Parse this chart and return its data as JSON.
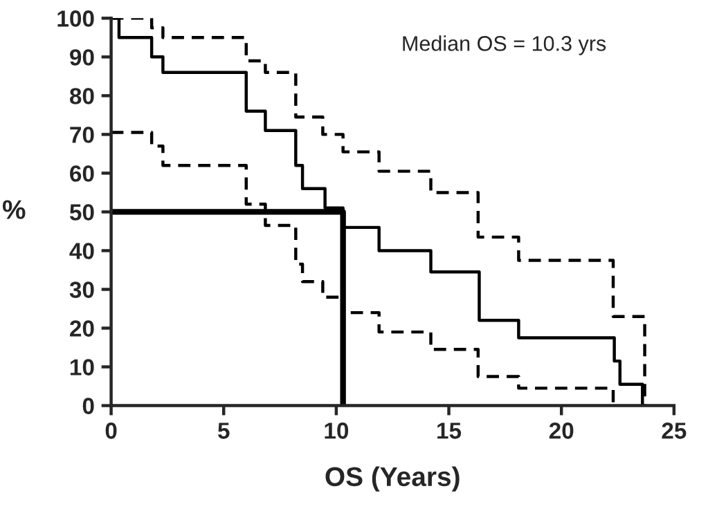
{
  "chart_data": {
    "type": "step",
    "xlabel": "OS (Years)",
    "ylabel": "%",
    "annotations": [
      "Median OS = 10.3 yrs"
    ],
    "xlim": [
      0,
      25
    ],
    "xticks": [
      0,
      5,
      10,
      15,
      20,
      25
    ],
    "ylim": [
      0,
      100
    ],
    "yticks": [
      0,
      10,
      20,
      30,
      40,
      50,
      60,
      70,
      80,
      90,
      100
    ],
    "grid": false,
    "legend": false,
    "series": [
      {
        "color": "#000000",
        "line_style": "solid",
        "x": [
          0,
          0.35,
          1.8,
          2.3,
          6.0,
          6.85,
          8.2,
          8.5,
          9.5,
          10.3,
          11.9,
          14.2,
          16.35,
          18.1,
          22.35,
          22.6,
          23.6
        ],
        "values": [
          100,
          95,
          90,
          86,
          76,
          71,
          62,
          56,
          51,
          46,
          40,
          34.5,
          22,
          17.5,
          11.5,
          5.5,
          0
        ]
      },
      {
        "color": "#000000",
        "line_style": "dashed",
        "x": [
          0,
          1.8,
          2.3,
          6.0,
          6.85,
          8.2,
          9.4,
          10.3,
          11.9,
          14.2,
          16.3,
          18.1,
          22.3,
          23.7
        ],
        "values": [
          100,
          97.5,
          95,
          89,
          86,
          74.5,
          70,
          65.5,
          60.5,
          55,
          43.5,
          37.5,
          23,
          0
        ]
      },
      {
        "color": "#000000",
        "line_style": "dashed",
        "x": [
          0,
          1.8,
          2.3,
          6.0,
          6.85,
          8.2,
          8.5,
          9.4,
          10.3,
          11.9,
          14.2,
          16.3,
          18.1,
          22.3
        ],
        "values": [
          70.5,
          67,
          62,
          52,
          46.5,
          36.5,
          32,
          28,
          24,
          19,
          14.5,
          7.5,
          4.5,
          0
        ]
      },
      {
        "type": "line",
        "color": "#000000",
        "line_style": "solid",
        "x": [
          0,
          10.3,
          10.3
        ],
        "values": [
          50,
          50,
          0
        ]
      }
    ]
  }
}
